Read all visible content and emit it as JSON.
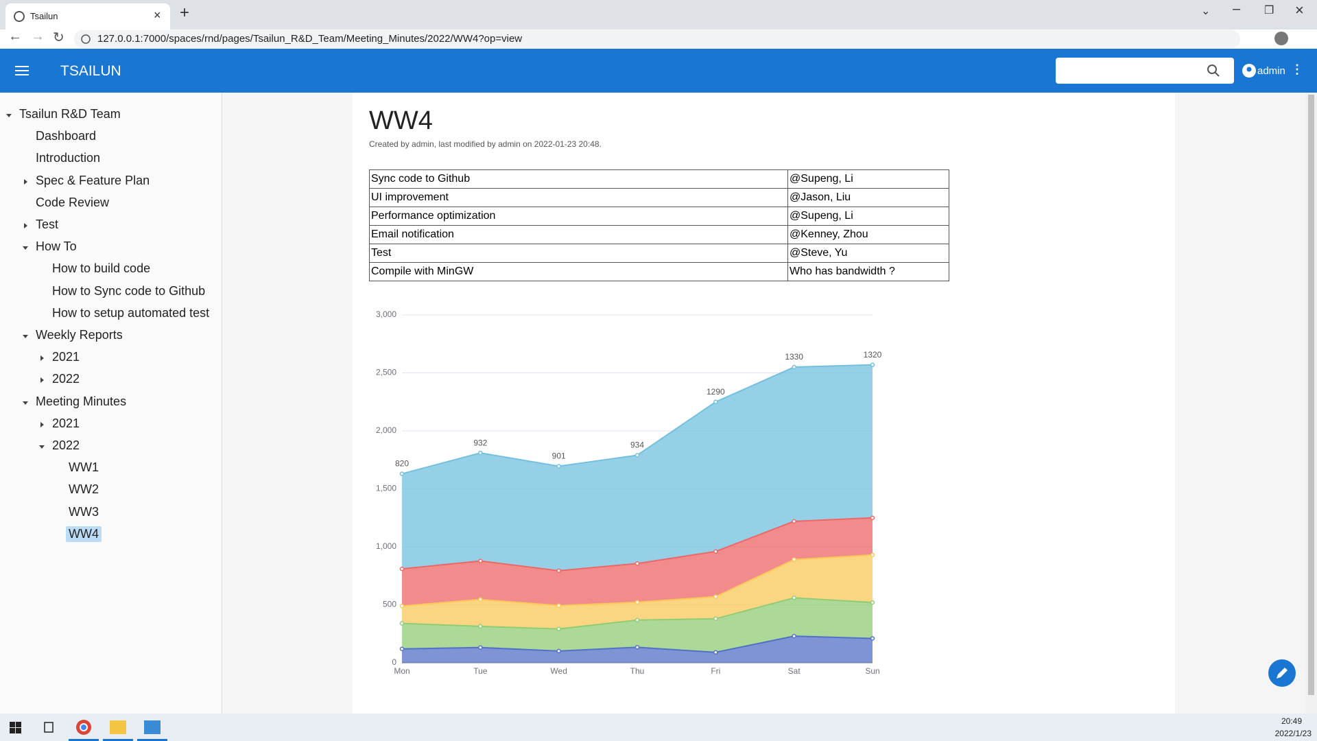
{
  "browser": {
    "tab_title": "Tsailun",
    "url": "127.0.0.1:7000/spaces/rnd/pages/Tsailun_R&D_Team/Meeting_Minutes/2022/WW4?op=view"
  },
  "app": {
    "name": "TSAILUN",
    "user": "admin"
  },
  "sidebar": {
    "items": [
      {
        "label": "Tsailun R&D Team",
        "level": 0,
        "toggle": "open"
      },
      {
        "label": "Dashboard",
        "level": 1
      },
      {
        "label": "Introduction",
        "level": 1
      },
      {
        "label": "Spec & Feature Plan",
        "level": 1,
        "toggle": "closed"
      },
      {
        "label": "Code Review",
        "level": 1
      },
      {
        "label": "Test",
        "level": 1,
        "toggle": "closed"
      },
      {
        "label": "How To",
        "level": 1,
        "toggle": "open"
      },
      {
        "label": "How to build code",
        "level": 2
      },
      {
        "label": "How to Sync code to Github",
        "level": 2
      },
      {
        "label": "How to setup automated test",
        "level": 2
      },
      {
        "label": "Weekly Reports",
        "level": 1,
        "toggle": "open"
      },
      {
        "label": "2021",
        "level": 2,
        "toggle": "closed"
      },
      {
        "label": "2022",
        "level": 2,
        "toggle": "closed"
      },
      {
        "label": "Meeting Minutes",
        "level": 1,
        "toggle": "open"
      },
      {
        "label": "2021",
        "level": 2,
        "toggle": "closed"
      },
      {
        "label": "2022",
        "level": 2,
        "toggle": "open"
      },
      {
        "label": "WW1",
        "level": 3
      },
      {
        "label": "WW2",
        "level": 3
      },
      {
        "label": "WW3",
        "level": 3
      },
      {
        "label": "WW4",
        "level": 3,
        "selected": true
      }
    ]
  },
  "page": {
    "title": "WW4",
    "meta": "Created by admin, last modified by admin on 2022-01-23 20:48."
  },
  "table": {
    "rows": [
      [
        "Sync code to Github",
        "@Supeng, Li"
      ],
      [
        "UI improvement",
        "@Jason, Liu"
      ],
      [
        "Performance optimization",
        "@Supeng, Li"
      ],
      [
        "Email notification",
        "@Kenney, Zhou"
      ],
      [
        "Test",
        "@Steve, Yu"
      ],
      [
        "Compile with MinGW",
        "Who has bandwidth ?"
      ]
    ]
  },
  "chart_data": {
    "type": "stacked-area",
    "categories": [
      "Mon",
      "Tue",
      "Wed",
      "Thu",
      "Fri",
      "Sat",
      "Sun"
    ],
    "series": [
      {
        "color": "#5470c6",
        "values": [
          120,
          132,
          101,
          134,
          90,
          230,
          210
        ]
      },
      {
        "color": "#91cc75",
        "values": [
          220,
          182,
          191,
          234,
          290,
          330,
          310
        ]
      },
      {
        "color": "#fac858",
        "values": [
          150,
          232,
          201,
          154,
          190,
          330,
          410
        ]
      },
      {
        "color": "#ee6666",
        "values": [
          320,
          332,
          301,
          334,
          390,
          330,
          320
        ]
      },
      {
        "color": "#73c0de",
        "values": [
          820,
          932,
          901,
          934,
          1290,
          1330,
          1320
        ],
        "show_labels": true
      }
    ],
    "ylim": [
      0,
      3000
    ],
    "yticks": [
      0,
      500,
      {
        "value": 1000,
        "label": "1,000"
      },
      {
        "value": 1500,
        "label": "1,500"
      },
      {
        "value": 2000,
        "label": "2,000"
      },
      {
        "value": 2500,
        "label": "2,500"
      },
      {
        "value": 3000,
        "label": "3,000"
      }
    ],
    "grid": true
  },
  "taskbar": {
    "time": "20:49",
    "date": "2022/1/23"
  }
}
